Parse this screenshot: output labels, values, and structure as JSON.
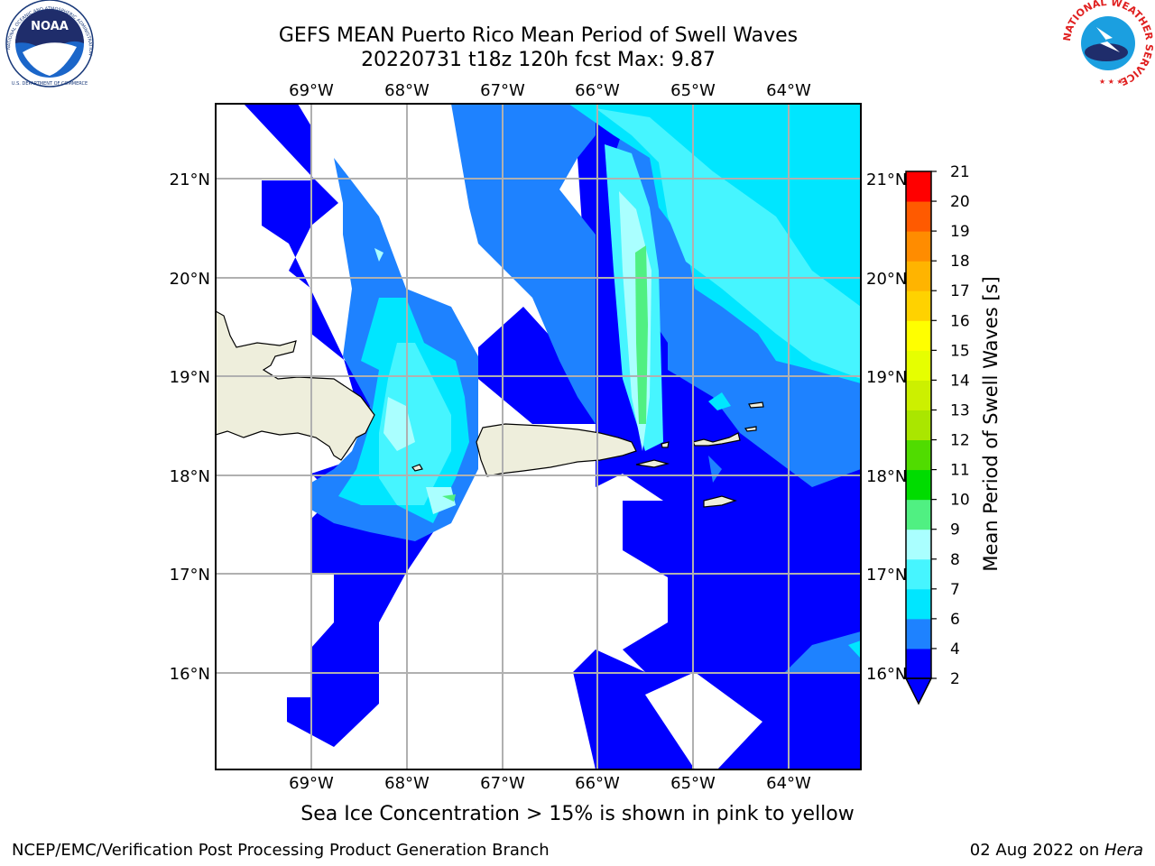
{
  "header": {
    "title_line1": "GEFS MEAN Puerto Rico Mean Period of Swell Waves",
    "title_line2": "20220731 t18z 120h fcst   Max: 9.87"
  },
  "logos": {
    "left": {
      "name": "NOAA",
      "ring_text": "NATIONAL OCEANIC AND ATMOSPHERIC ADMINISTRATION",
      "bottom_text": "U.S. DEPARTMENT OF COMMERCE"
    },
    "right": {
      "ring_text": "NATIONAL WEATHER SERVICE"
    }
  },
  "map": {
    "lon_labels": [
      "69°W",
      "68°W",
      "67°W",
      "66°W",
      "65°W",
      "64°W"
    ],
    "lat_labels": [
      "21°N",
      "20°N",
      "19°N",
      "18°N",
      "17°N",
      "16°N"
    ],
    "gridlines": true,
    "land_color": "#eeeedc",
    "no_data_color": "#ffffff"
  },
  "colorbar": {
    "label": "Mean Period of Swell Waves [s]",
    "ticks": [
      "2",
      "4",
      "6",
      "7",
      "8",
      "9",
      "10",
      "11",
      "12",
      "13",
      "14",
      "15",
      "16",
      "17",
      "18",
      "19",
      "20",
      "21"
    ],
    "colors": [
      "#0000ff",
      "#1e82ff",
      "#00e6ff",
      "#46f5ff",
      "#aaffff",
      "#50f082",
      "#00dc00",
      "#50dc00",
      "#aae600",
      "#ccf000",
      "#e6ff00",
      "#ffff00",
      "#ffd200",
      "#ffb400",
      "#ff8c00",
      "#ff5a00",
      "#ff2800",
      "#ff0000"
    ],
    "extend_color": "#0000ff"
  },
  "caption": "Sea Ice Concentration > 15% is shown in pink to yellow",
  "footer": {
    "left": "NCEP/EMC/Verification Post Processing Product Generation Branch",
    "date": "02 Aug 2022 on ",
    "machine": "Hera"
  },
  "chart_data": {
    "type": "heatmap",
    "title": "GEFS MEAN Puerto Rico Mean Period of Swell Waves",
    "subtitle": "20220731 t18z 120h fcst   Max: 9.87",
    "colorbar_label": "Mean Period of Swell Waves [s]",
    "colorbar_range": [
      2,
      21
    ],
    "max_value": 9.87
  }
}
